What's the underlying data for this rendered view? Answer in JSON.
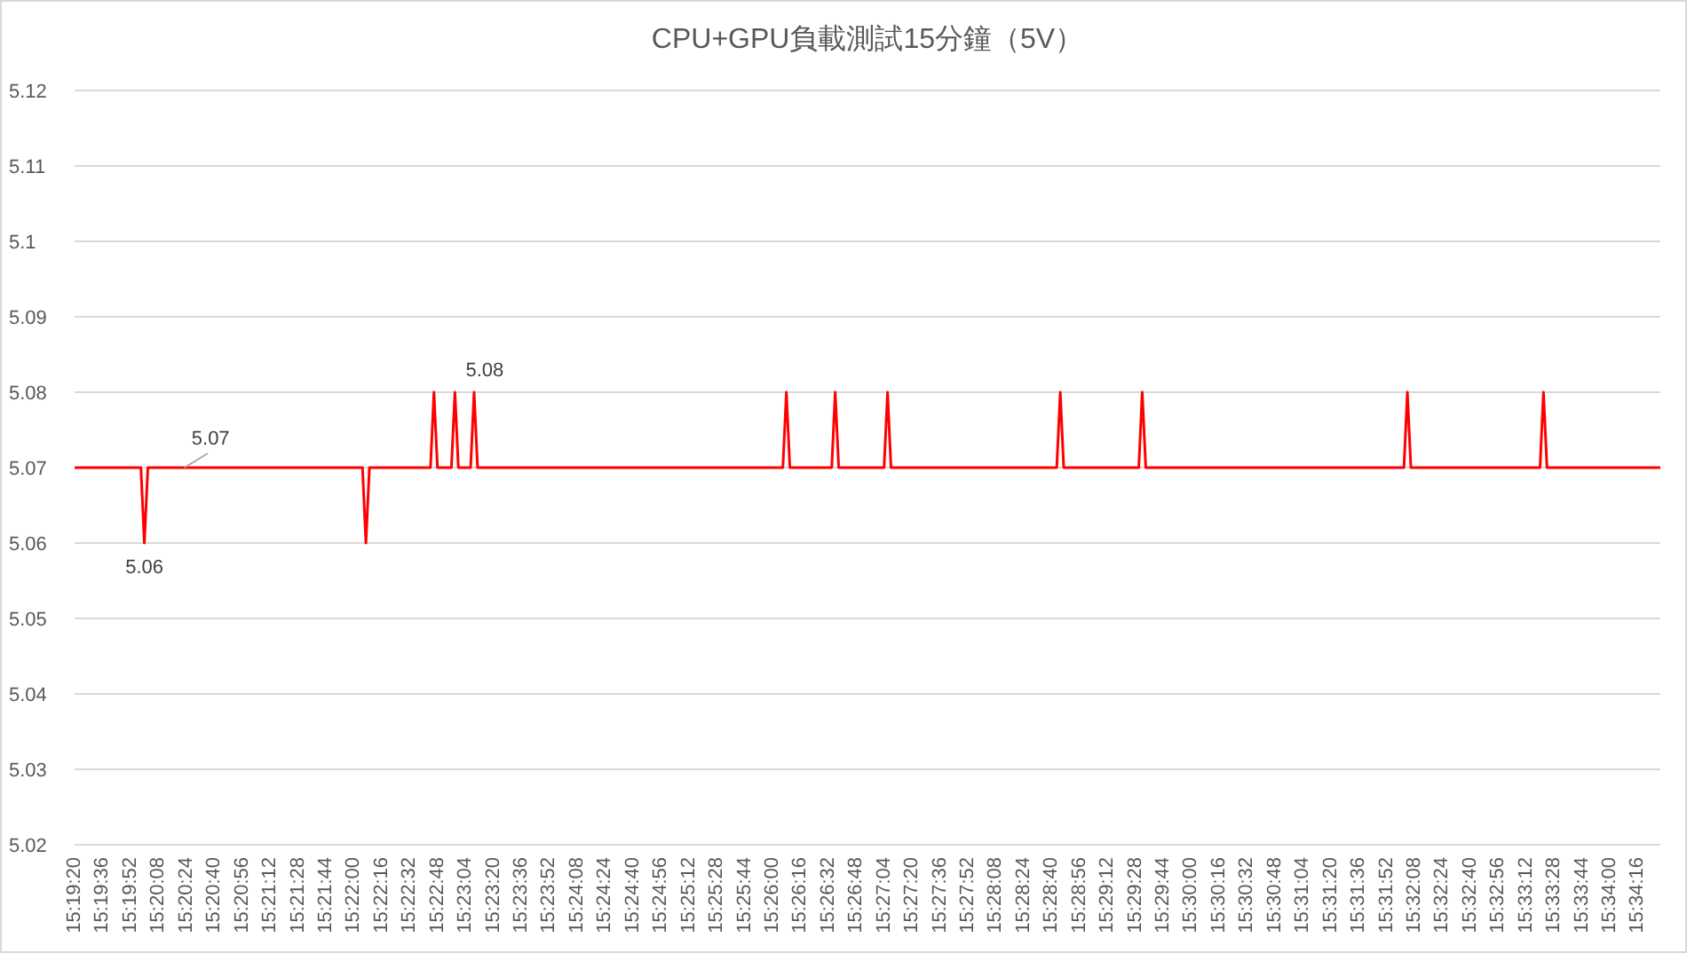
{
  "chart_data": {
    "type": "line",
    "title": "CPU+GPU負載測試15分鐘（5V）",
    "x": [
      15.32222,
      15.33278,
      15.33333,
      15.33389,
      15.33972,
      15.36806,
      15.36861,
      15.36917,
      15.37889,
      15.37944,
      15.38,
      15.38222,
      15.38278,
      15.38333,
      15.38528,
      15.38583,
      15.38639,
      15.435,
      15.43556,
      15.43611,
      15.44278,
      15.44333,
      15.44389,
      15.45111,
      15.45167,
      15.45222,
      15.47861,
      15.47917,
      15.47972,
      15.49167,
      15.49222,
      15.49278,
      15.53389,
      15.53444,
      15.535,
      15.55556,
      15.55611,
      15.55667,
      15.57472
    ],
    "series": [
      {
        "color": "#ff0000",
        "values": [
          5.07,
          5.07,
          5.06,
          5.07,
          5.07,
          5.07,
          5.06,
          5.07,
          5.07,
          5.08,
          5.07,
          5.07,
          5.08,
          5.07,
          5.07,
          5.08,
          5.07,
          5.07,
          5.08,
          5.07,
          5.07,
          5.08,
          5.07,
          5.07,
          5.08,
          5.07,
          5.07,
          5.08,
          5.07,
          5.07,
          5.08,
          5.07,
          5.07,
          5.08,
          5.07,
          5.07,
          5.08,
          5.07,
          5.07
        ],
        "value_labels": [
          null,
          null,
          "5.06",
          null,
          "5.07",
          null,
          null,
          null,
          null,
          null,
          null,
          null,
          null,
          null,
          null,
          "5.08",
          null,
          null,
          null,
          null,
          null,
          null,
          null,
          null,
          null,
          null,
          null,
          null,
          null,
          null,
          null,
          null,
          null,
          null,
          null,
          null,
          null,
          null,
          null
        ]
      }
    ],
    "xlim": [
      15.32222,
      15.57472
    ],
    "xticks": [
      {
        "value": 15.32222,
        "label": "15:19:20"
      },
      {
        "value": 15.32667,
        "label": "15:19:36"
      },
      {
        "value": 15.33111,
        "label": "15:19:52"
      },
      {
        "value": 15.33556,
        "label": "15:20:08"
      },
      {
        "value": 15.34,
        "label": "15:20:24"
      },
      {
        "value": 15.34444,
        "label": "15:20:40"
      },
      {
        "value": 15.34889,
        "label": "15:20:56"
      },
      {
        "value": 15.35333,
        "label": "15:21:12"
      },
      {
        "value": 15.35778,
        "label": "15:21:28"
      },
      {
        "value": 15.36222,
        "label": "15:21:44"
      },
      {
        "value": 15.36667,
        "label": "15:22:00"
      },
      {
        "value": 15.37111,
        "label": "15:22:16"
      },
      {
        "value": 15.37556,
        "label": "15:22:32"
      },
      {
        "value": 15.38,
        "label": "15:22:48"
      },
      {
        "value": 15.38444,
        "label": "15:23:04"
      },
      {
        "value": 15.38889,
        "label": "15:23:20"
      },
      {
        "value": 15.39333,
        "label": "15:23:36"
      },
      {
        "value": 15.39778,
        "label": "15:23:52"
      },
      {
        "value": 15.40222,
        "label": "15:24:08"
      },
      {
        "value": 15.40667,
        "label": "15:24:24"
      },
      {
        "value": 15.41111,
        "label": "15:24:40"
      },
      {
        "value": 15.41556,
        "label": "15:24:56"
      },
      {
        "value": 15.42,
        "label": "15:25:12"
      },
      {
        "value": 15.42444,
        "label": "15:25:28"
      },
      {
        "value": 15.42889,
        "label": "15:25:44"
      },
      {
        "value": 15.43333,
        "label": "15:26:00"
      },
      {
        "value": 15.43778,
        "label": "15:26:16"
      },
      {
        "value": 15.44222,
        "label": "15:26:32"
      },
      {
        "value": 15.44667,
        "label": "15:26:48"
      },
      {
        "value": 15.45111,
        "label": "15:27:04"
      },
      {
        "value": 15.45556,
        "label": "15:27:20"
      },
      {
        "value": 15.46,
        "label": "15:27:36"
      },
      {
        "value": 15.46444,
        "label": "15:27:52"
      },
      {
        "value": 15.46889,
        "label": "15:28:08"
      },
      {
        "value": 15.47333,
        "label": "15:28:24"
      },
      {
        "value": 15.47778,
        "label": "15:28:40"
      },
      {
        "value": 15.48222,
        "label": "15:28:56"
      },
      {
        "value": 15.48667,
        "label": "15:29:12"
      },
      {
        "value": 15.49111,
        "label": "15:29:28"
      },
      {
        "value": 15.49556,
        "label": "15:29:44"
      },
      {
        "value": 15.5,
        "label": "15:30:00"
      },
      {
        "value": 15.50444,
        "label": "15:30:16"
      },
      {
        "value": 15.50889,
        "label": "15:30:32"
      },
      {
        "value": 15.51333,
        "label": "15:30:48"
      },
      {
        "value": 15.51778,
        "label": "15:31:04"
      },
      {
        "value": 15.52222,
        "label": "15:31:20"
      },
      {
        "value": 15.52667,
        "label": "15:31:36"
      },
      {
        "value": 15.53111,
        "label": "15:31:52"
      },
      {
        "value": 15.53556,
        "label": "15:32:08"
      },
      {
        "value": 15.54,
        "label": "15:32:24"
      },
      {
        "value": 15.54444,
        "label": "15:32:40"
      },
      {
        "value": 15.54889,
        "label": "15:32:56"
      },
      {
        "value": 15.55333,
        "label": "15:33:12"
      },
      {
        "value": 15.55778,
        "label": "15:33:28"
      },
      {
        "value": 15.56222,
        "label": "15:33:44"
      },
      {
        "value": 15.56667,
        "label": "15:34:00"
      },
      {
        "value": 15.57111,
        "label": "15:34:16"
      }
    ],
    "ylim": [
      5.02,
      5.12
    ],
    "yticks": [
      5.02,
      5.03,
      5.04,
      5.05,
      5.06,
      5.07,
      5.08,
      5.09,
      5.1,
      5.11,
      5.12
    ],
    "grid": "y",
    "marker": "none",
    "line_style": "solid"
  }
}
